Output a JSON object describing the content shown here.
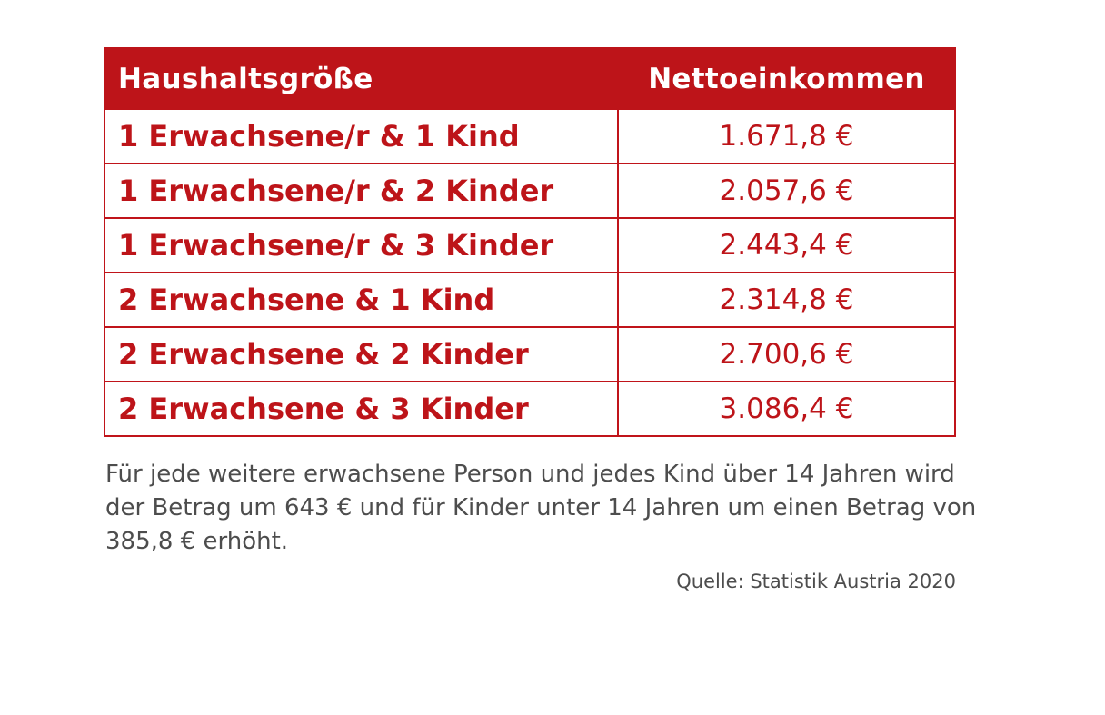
{
  "table": {
    "headers": [
      "Haushaltsgröße",
      "Nettoeinkommen"
    ],
    "rows": [
      {
        "household": "1 Erwachsene/r & 1 Kind",
        "income": "1.671,8 €"
      },
      {
        "household": "1 Erwachsene/r & 2 Kinder",
        "income": "2.057,6 €"
      },
      {
        "household": "1 Erwachsene/r & 3 Kinder",
        "income": "2.443,4 €"
      },
      {
        "household": "2 Erwachsene & 1 Kind",
        "income": "2.314,8 €"
      },
      {
        "household": "2 Erwachsene & 2 Kinder",
        "income": "2.700,6 €"
      },
      {
        "household": "2 Erwachsene & 3 Kinder",
        "income": "3.086,4 €"
      }
    ]
  },
  "note": "Für jede weitere erwachsene Person und jedes Kind über 14 Jahren wird der Betrag um 643 € und für Kinder unter 14 Jahren um einen Betrag von 385,8 € erhöht.",
  "source": "Quelle: Statistik Austria 2020",
  "colors": {
    "accent": "#bd1419",
    "text_gray": "#4d4d4d",
    "background": "#ffffff"
  }
}
